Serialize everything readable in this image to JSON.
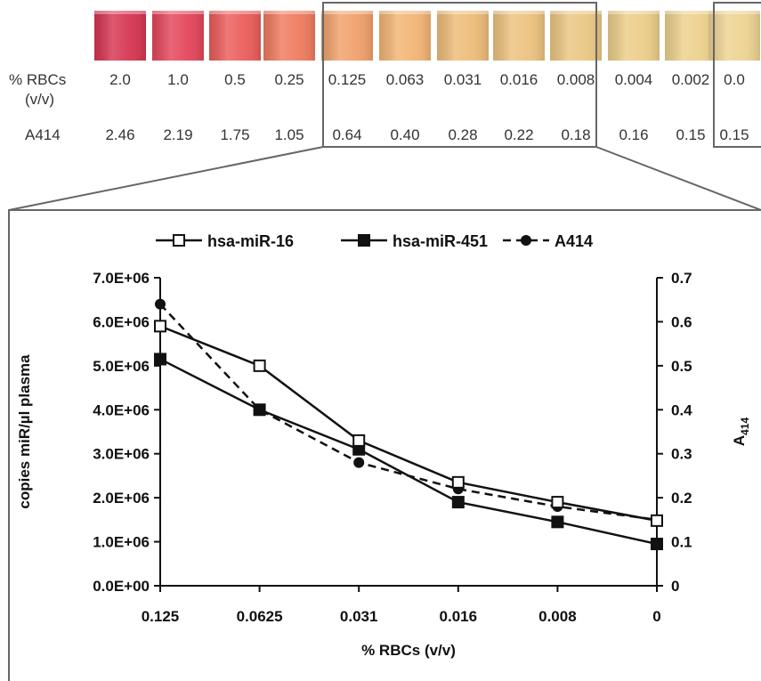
{
  "strip": {
    "rbc_label_line1": "% RBCs",
    "rbc_label_line2": "(v/v)",
    "a414_label": "A414",
    "tube_colors": [
      "#d6344f",
      "#e4455a",
      "#ea5c5a",
      "#ef7a5e",
      "#f0a06a",
      "#f2b473",
      "#edbc78",
      "#ecc27e",
      "#eac681",
      "#ebcd88",
      "#ecd08c",
      "#edd391"
    ],
    "rbc_values": [
      "2.0",
      "1.0",
      "0.5",
      "0.25",
      "0.125",
      "0.063",
      "0.031",
      "0.016",
      "0.008",
      "0.004",
      "0.002",
      "0.0"
    ],
    "a414_values": [
      "2.46",
      "2.19",
      "1.75",
      "1.05",
      "0.64",
      "0.40",
      "0.28",
      "0.22",
      "0.18",
      "0.16",
      "0.15",
      "0.15"
    ]
  },
  "chart_data": {
    "type": "line",
    "xlabel": "% RBCs (v/v)",
    "ylabel": "copies miR/µl plasma",
    "y2label_main": "A",
    "y2label_sub": "414",
    "categories": [
      "0.125",
      "0.0625",
      "0.031",
      "0.016",
      "0.008",
      "0"
    ],
    "ylim": [
      0,
      7000000
    ],
    "yticks": [
      "0.0E+00",
      "1.0E+06",
      "2.0E+06",
      "3.0E+06",
      "4.0E+06",
      "5.0E+06",
      "6.0E+06",
      "7.0E+06"
    ],
    "y2lim": [
      0,
      0.7
    ],
    "y2ticks": [
      "0",
      "0.1",
      "0.2",
      "0.3",
      "0.4",
      "0.5",
      "0.6",
      "0.7"
    ],
    "legend_position": "top",
    "series": [
      {
        "name": "hsa-miR-16",
        "axis": "left",
        "marker": "open-square",
        "dash": "solid",
        "values": [
          5900000,
          5000000,
          3300000,
          2350000,
          1900000,
          1480000
        ]
      },
      {
        "name": "hsa-miR-451",
        "axis": "left",
        "marker": "filled-square",
        "dash": "solid",
        "values": [
          5150000,
          4000000,
          3100000,
          1900000,
          1450000,
          950000
        ]
      },
      {
        "name": "A414",
        "axis": "right",
        "marker": "filled-circle",
        "dash": "dashed",
        "values": [
          0.64,
          0.4,
          0.28,
          0.22,
          0.18,
          0.15
        ]
      }
    ]
  }
}
